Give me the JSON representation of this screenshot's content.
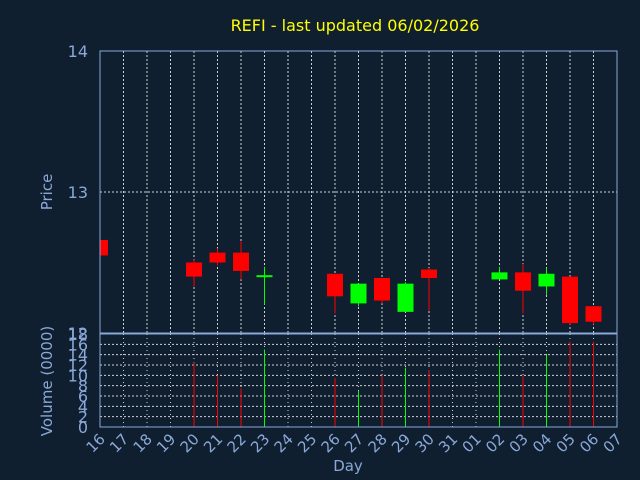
{
  "chart_data": {
    "type": "candlestick",
    "title": "REFI - last updated 06/02/2026",
    "colors": {
      "background": "#0f1f30",
      "title": "#ffff00",
      "axis_text": "#8aa8d8",
      "frame": "#8aa8d8",
      "grid": "#d0d0d0",
      "up": "#00ff00",
      "down": "#ff0000"
    },
    "x_ticks": [
      "16",
      "17",
      "18",
      "19",
      "20",
      "21",
      "22",
      "23",
      "24",
      "25",
      "26",
      "27",
      "28",
      "29",
      "30",
      "31",
      "01",
      "02",
      "03",
      "04",
      "05",
      "06",
      "07"
    ],
    "xlabel": "Day",
    "price_panel": {
      "ylabel": "Price",
      "ylim": [
        12,
        14
      ],
      "yticks": [
        "12",
        "13",
        "14"
      ],
      "grid": true
    },
    "volume_panel": {
      "ylabel": "Volume (0000)",
      "ylim": [
        0,
        18
      ],
      "yticks": [
        "0",
        "2",
        "4",
        "6",
        "8",
        "10",
        "12",
        "14",
        "16",
        "18"
      ],
      "grid": true
    },
    "series": [
      {
        "day": "16",
        "open": 12.66,
        "high": 12.66,
        "low": 12.55,
        "close": 12.55,
        "volume": null
      },
      {
        "day": "20",
        "open": 12.5,
        "high": 12.52,
        "low": 12.33,
        "close": 12.4,
        "volume": 12.5
      },
      {
        "day": "21",
        "open": 12.57,
        "high": 12.6,
        "low": 12.48,
        "close": 12.5,
        "volume": 10
      },
      {
        "day": "22",
        "open": 12.57,
        "high": 12.65,
        "low": 12.38,
        "close": 12.44,
        "volume": 7.5
      },
      {
        "day": "23",
        "open": 12.41,
        "high": 12.47,
        "low": 12.2,
        "close": 12.41,
        "volume": 15
      },
      {
        "day": "26",
        "open": 12.42,
        "high": 12.42,
        "low": 12.14,
        "close": 12.26,
        "volume": 9.5
      },
      {
        "day": "27",
        "open": 12.21,
        "high": 12.35,
        "low": 12.19,
        "close": 12.35,
        "volume": 7
      },
      {
        "day": "28",
        "open": 12.39,
        "high": 12.39,
        "low": 12.21,
        "close": 12.23,
        "volume": 10
      },
      {
        "day": "29",
        "open": 12.15,
        "high": 12.36,
        "low": 12.15,
        "close": 12.35,
        "volume": 11.5
      },
      {
        "day": "30",
        "open": 12.45,
        "high": 12.46,
        "low": 12.16,
        "close": 12.39,
        "volume": 11
      },
      {
        "day": "02",
        "open": 12.38,
        "high": 12.47,
        "low": 12.38,
        "close": 12.43,
        "volume": 15
      },
      {
        "day": "03",
        "open": 12.43,
        "high": 12.49,
        "low": 12.14,
        "close": 12.3,
        "volume": 10
      },
      {
        "day": "04",
        "open": 12.33,
        "high": 12.46,
        "low": 12.27,
        "close": 12.42,
        "volume": 14
      },
      {
        "day": "05",
        "open": 12.4,
        "high": 12.4,
        "low": 12.06,
        "close": 12.07,
        "volume": 16.5
      },
      {
        "day": "06",
        "open": 12.19,
        "high": 12.19,
        "low": 12.06,
        "close": 12.08,
        "volume": 16.5
      }
    ]
  }
}
